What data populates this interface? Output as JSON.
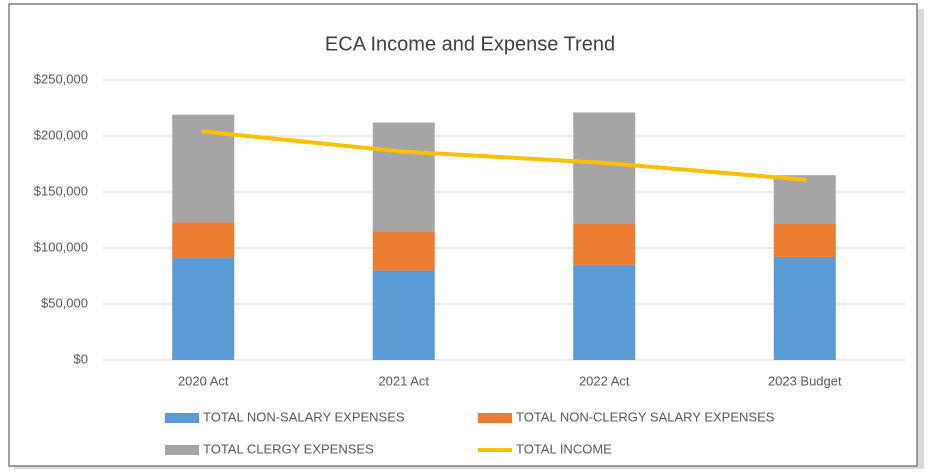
{
  "chart_data": {
    "type": "bar",
    "stacked": true,
    "title": "ECA Income and Expense Trend",
    "categories": [
      "2020 Act",
      "2021 Act",
      "2022 Act",
      "2023 Budget"
    ],
    "series": [
      {
        "name": "TOTAL NON-SALARY EXPENSES",
        "type": "bar",
        "color": "#5b9bd5",
        "values": [
          91000,
          80000,
          85000,
          92000
        ]
      },
      {
        "name": "TOTAL NON-CLERGY SALARY EXPENSES",
        "type": "bar",
        "color": "#ed7d31",
        "values": [
          32000,
          35000,
          37000,
          30000
        ]
      },
      {
        "name": "TOTAL CLERGY EXPENSES",
        "type": "bar",
        "color": "#a5a5a5",
        "values": [
          96000,
          97000,
          99000,
          43000
        ]
      },
      {
        "name": "TOTAL INCOME",
        "type": "line",
        "color": "#ffc000",
        "values": [
          204000,
          186000,
          176000,
          161000
        ]
      }
    ],
    "ylim": [
      0,
      250000
    ],
    "yticks": [
      {
        "value": 0,
        "label": "$0"
      },
      {
        "value": 50000,
        "label": "$50,000"
      },
      {
        "value": 100000,
        "label": "$100,000"
      },
      {
        "value": 150000,
        "label": "$150,000"
      },
      {
        "value": 200000,
        "label": "$200,000"
      },
      {
        "value": 250000,
        "label": "$250,000"
      }
    ],
    "grid": true
  }
}
